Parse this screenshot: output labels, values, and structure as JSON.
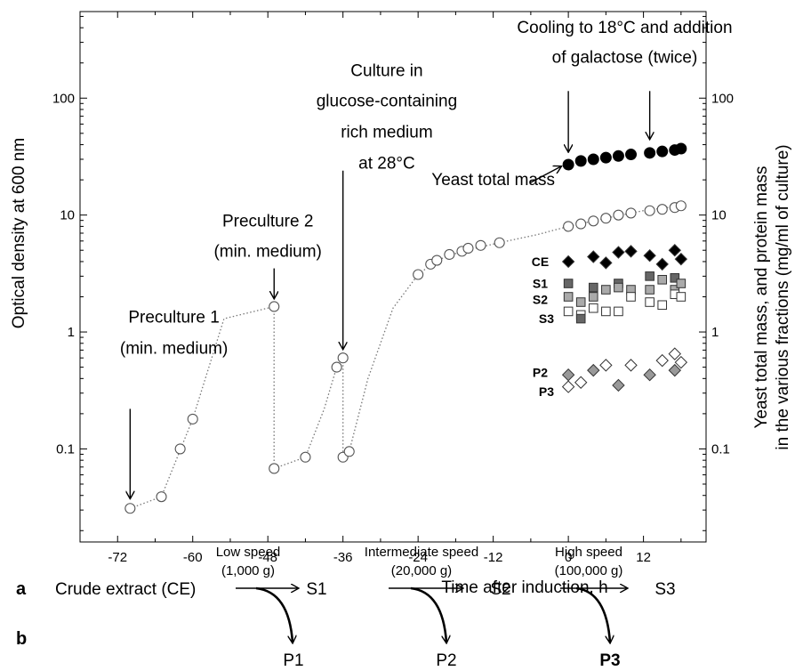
{
  "panel_a_label": "a",
  "panel_b_label": "b",
  "chart_data": {
    "type": "scatter",
    "title": "",
    "xlabel": "Time after induction, h",
    "ylabel": "Optical density at 600 nm",
    "y2label_line1": "Yeast total mass, and protein mass",
    "y2label_line2": "in the various fractions (mg/ml of culture)",
    "xlim": [
      -78,
      22
    ],
    "ylim": [
      0.016,
      550
    ],
    "yscale": "log",
    "grid": false,
    "x_ticks": [
      -72,
      -60,
      -48,
      -36,
      -24,
      -12,
      0,
      12
    ],
    "x_tick_labels": [
      "-72",
      "-60",
      "-48",
      "-36",
      "-24",
      "-12",
      "0",
      "12"
    ],
    "y_ticks": [
      0.1,
      1,
      10,
      100
    ],
    "y_tick_labels": [
      "0.1",
      "1",
      "10",
      "100"
    ],
    "y2_tick_labels": [
      "0.1",
      "1",
      "10",
      "100"
    ],
    "od_series": {
      "x": [
        -70,
        -65,
        -62,
        -60,
        -47,
        -47,
        -42,
        -37,
        -36,
        -36,
        -35,
        -24,
        -22,
        -21,
        -19,
        -17,
        -16,
        -14,
        -11,
        0,
        2,
        4,
        6,
        8,
        10,
        13,
        15,
        17,
        18
      ],
      "y": [
        0.031,
        0.039,
        0.1,
        0.18,
        1.65,
        0.068,
        0.085,
        0.5,
        0.6,
        0.085,
        0.095,
        3.1,
        3.8,
        4.1,
        4.6,
        4.9,
        5.2,
        5.5,
        5.8,
        8.0,
        8.4,
        8.9,
        9.4,
        10.0,
        10.4,
        10.9,
        11.2,
        11.6,
        12.0
      ]
    },
    "od_curve_segments": [
      {
        "x": [
          -70,
          -65,
          -60,
          -55,
          -47
        ],
        "y": [
          0.031,
          0.039,
          0.18,
          1.3,
          1.65
        ]
      },
      {
        "x": [
          -47,
          -47
        ],
        "y": [
          1.65,
          0.068
        ]
      },
      {
        "x": [
          -47,
          -42,
          -39,
          -37,
          -36
        ],
        "y": [
          0.068,
          0.085,
          0.22,
          0.5,
          0.6
        ]
      },
      {
        "x": [
          -36,
          -36,
          -35
        ],
        "y": [
          0.6,
          0.085,
          0.095
        ]
      },
      {
        "x": [
          -35,
          -32,
          -28,
          -24,
          -21,
          -17,
          -11,
          -5,
          0,
          6,
          12,
          18
        ],
        "y": [
          0.095,
          0.4,
          1.6,
          3.1,
          4.1,
          4.9,
          5.8,
          6.8,
          8.0,
          9.4,
          10.9,
          12.0
        ]
      }
    ],
    "series": [
      {
        "name": "Yeast total mass",
        "marker": "circle",
        "fill": "#000000",
        "x": [
          0,
          2,
          4,
          6,
          8,
          10,
          13,
          15,
          17,
          18
        ],
        "y": [
          27,
          29,
          30,
          31,
          32,
          33,
          34,
          35,
          36,
          37
        ]
      },
      {
        "name": "CE",
        "marker": "diamond",
        "fill": "#000000",
        "x": [
          0,
          4,
          6,
          8,
          10,
          13,
          15,
          17,
          18
        ],
        "y": [
          4.0,
          4.4,
          3.9,
          4.8,
          4.9,
          4.5,
          3.8,
          5.0,
          4.2
        ]
      },
      {
        "name": "S1",
        "marker": "square",
        "fill": "#666666",
        "x": [
          0,
          4,
          8,
          13,
          17
        ],
        "y": [
          2.6,
          2.4,
          2.6,
          3.0,
          2.9
        ]
      },
      {
        "name": "S2",
        "marker": "square",
        "fill": "#aaaaaa",
        "x": [
          0,
          2,
          4,
          6,
          8,
          10,
          13,
          15,
          17,
          18
        ],
        "y": [
          2.0,
          1.8,
          2.0,
          2.3,
          2.4,
          2.3,
          2.3,
          2.8,
          2.3,
          2.6
        ]
      },
      {
        "name": "S3",
        "marker": "square",
        "fill": "#ffffff",
        "x": [
          0,
          2,
          4,
          6,
          8,
          10,
          13,
          15,
          17,
          18
        ],
        "y": [
          1.5,
          1.4,
          1.6,
          1.5,
          1.5,
          2.0,
          1.8,
          1.7,
          2.1,
          2.0
        ]
      },
      {
        "name": "S1 (low)",
        "marker": "square",
        "fill": "#666666",
        "x": [
          2
        ],
        "y": [
          1.3
        ]
      },
      {
        "name": "P2",
        "marker": "diamond",
        "fill": "#999999",
        "x": [
          0,
          4,
          8,
          13,
          17
        ],
        "y": [
          0.43,
          0.47,
          0.35,
          0.43,
          0.47
        ]
      },
      {
        "name": "P3",
        "marker": "diamond",
        "fill": "#ffffff",
        "x": [
          0,
          2,
          6,
          10,
          15,
          17,
          18
        ],
        "y": [
          0.34,
          0.37,
          0.52,
          0.52,
          0.57,
          0.65,
          0.55
        ]
      }
    ],
    "series_labels": [
      {
        "text": "CE",
        "x": -4.5,
        "y": 4.0
      },
      {
        "text": "S1",
        "x": -4.5,
        "y": 2.6
      },
      {
        "text": "S2",
        "x": -4.5,
        "y": 1.9
      },
      {
        "text": "S3",
        "x": -3.5,
        "y": 1.3
      },
      {
        "text": "P2",
        "x": -4.5,
        "y": 0.45
      },
      {
        "text": "P3",
        "x": -3.5,
        "y": 0.31
      }
    ],
    "annotations": [
      {
        "lines": [
          "Preculture 1",
          "(min. medium)"
        ],
        "x": -63,
        "y": [
          1.2,
          0.65
        ],
        "arrow": {
          "x": -70,
          "y_from": 0.22,
          "y_to": 0.038
        }
      },
      {
        "lines": [
          "Preculture 2",
          "(min. medium)"
        ],
        "x": -48,
        "y": [
          8.0,
          4.4
        ],
        "arrow": {
          "x": -47,
          "y_from": 3.5,
          "y_to": 1.95
        }
      },
      {
        "lines": [
          "Culture in",
          "glucose-containing",
          "rich medium",
          "at 28°C"
        ],
        "x": -29,
        "y": [
          155,
          85,
          46,
          25
        ],
        "arrow": {
          "x": -36,
          "y_from": 24,
          "y_to": 0.72
        }
      },
      {
        "lines": [
          "Cooling to 18°C and addition",
          "of galactose (twice)"
        ],
        "x": 9,
        "y": [
          360,
          200
        ],
        "arrows": [
          {
            "x": 0,
            "y_from": 115,
            "y_to": 35
          },
          {
            "x": 13,
            "y_from": 115,
            "y_to": 45
          }
        ]
      },
      {
        "lines": [
          "Yeast total mass"
        ],
        "x": -12,
        "y": [
          18
        ],
        "arrow": {
          "x_from": -6,
          "x_to": -1.2,
          "y_from": 19,
          "y_to": 26
        }
      }
    ]
  },
  "scheme": {
    "start": "Crude extract (CE)",
    "steps": [
      {
        "speed": "Low speed",
        "g": "(1,000 g)",
        "supernatant": "S1",
        "pellet": "P1",
        "pellet_bold": false
      },
      {
        "speed": "Intermediate speed",
        "g": "(20,000 g)",
        "supernatant": "S2",
        "pellet": "P2",
        "pellet_bold": false
      },
      {
        "speed": "High speed",
        "g": "(100,000 g)",
        "supernatant": "S3",
        "pellet": "P3",
        "pellet_bold": true
      }
    ]
  }
}
